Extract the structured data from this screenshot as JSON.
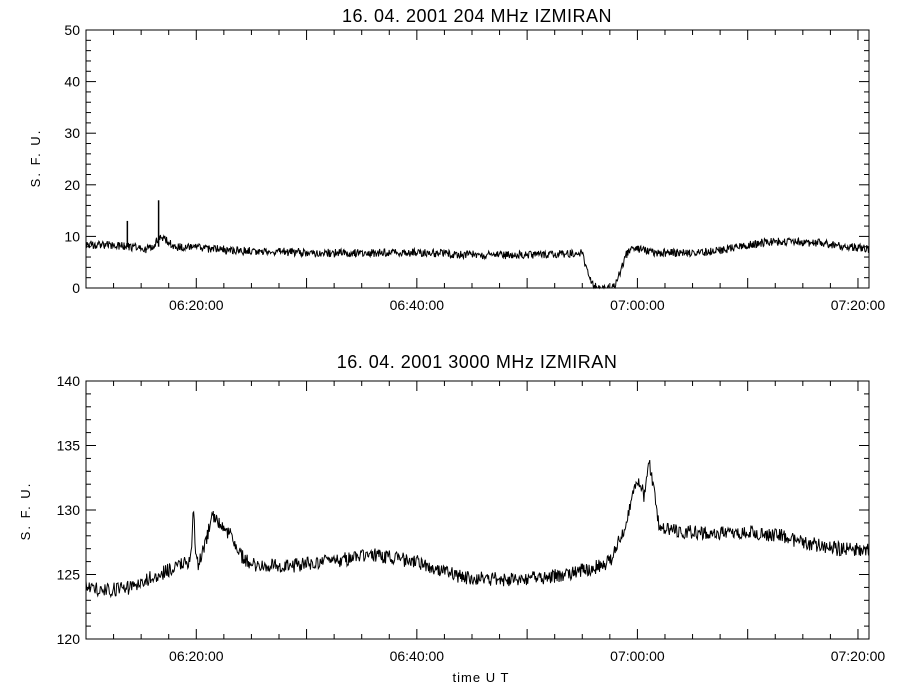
{
  "chart_data": [
    {
      "type": "line",
      "title": "16.  04.  2001    204 MHz    IZMIRAN",
      "ylabel": "S. F. U.",
      "xlabel": "",
      "xlim": [
        "06:10:00",
        "07:21:00"
      ],
      "ylim": [
        0,
        50
      ],
      "yticks": [
        "0",
        "10",
        "20",
        "30",
        "40",
        "50"
      ],
      "xticks": [
        "06:20:00",
        "06:40:00",
        "07:00:00",
        "07:20:00"
      ],
      "grid": false,
      "series": [
        {
          "x": [
            "06:10:00",
            "06:12:00",
            "06:14:00",
            "06:15:30",
            "06:16:00",
            "06:16:45",
            "06:18:00",
            "06:20:00",
            "06:24:00",
            "06:28:00",
            "06:32:00",
            "06:36:00",
            "06:40:00",
            "06:44:00",
            "06:48:00",
            "06:52:00",
            "06:55:00",
            "06:55:30",
            "06:56:00",
            "06:56:30",
            "06:57:00",
            "06:57:30",
            "06:58:00",
            "06:58:30",
            "06:59:00",
            "06:59:30",
            "07:00:00",
            "07:02:00",
            "07:06:00",
            "07:08:00",
            "07:10:00",
            "07:12:00",
            "07:16:00",
            "07:21:00"
          ],
          "values": [
            8.5,
            8.3,
            8,
            7.5,
            8,
            10,
            8,
            7.8,
            7.2,
            7,
            6.8,
            6.8,
            6.9,
            6.5,
            6.4,
            6.5,
            6.7,
            3,
            0.5,
            0,
            0,
            0,
            0.5,
            3.5,
            6.5,
            7.5,
            7.5,
            6.8,
            6.9,
            7.5,
            8.3,
            9,
            8.8,
            7.5
          ]
        }
      ],
      "spikes": [
        {
          "x": "06:13:45",
          "value": 13
        },
        {
          "x": "06:16:35",
          "value": 17
        }
      ]
    },
    {
      "type": "line",
      "title": "16.  04.  2001    3000 MHz    IZMIRAN",
      "ylabel": "S. F. U.",
      "xlabel": "time   U T",
      "xlim": [
        "06:10:00",
        "07:21:00"
      ],
      "ylim": [
        120,
        140
      ],
      "yticks": [
        "120",
        "125",
        "130",
        "135",
        "140"
      ],
      "xticks": [
        "06:20:00",
        "06:40:00",
        "07:00:00",
        "07:20:00"
      ],
      "grid": false,
      "series": [
        {
          "x": [
            "06:10:00",
            "06:12:00",
            "06:14:00",
            "06:16:00",
            "06:18:00",
            "06:19:30",
            "06:19:45",
            "06:20:00",
            "06:20:15",
            "06:21:30",
            "06:22:00",
            "06:23:00",
            "06:24:00",
            "06:25:00",
            "06:28:00",
            "06:32:00",
            "06:36:00",
            "06:40:00",
            "06:44:00",
            "06:48:00",
            "06:52:00",
            "06:56:00",
            "06:57:30",
            "06:58:00",
            "06:59:00",
            "07:00:00",
            "07:00:40",
            "07:01:00",
            "07:01:30",
            "07:02:00",
            "07:03:00",
            "07:06:00",
            "07:10:00",
            "07:13:00",
            "07:15:00",
            "07:18:00",
            "07:21:00"
          ],
          "values": [
            124,
            123.8,
            124,
            124.8,
            125.5,
            126,
            130,
            126,
            125.8,
            129.5,
            129,
            128.2,
            126.5,
            125.8,
            125.6,
            126,
            126.5,
            126,
            124.8,
            124.6,
            124.8,
            125.5,
            126,
            127,
            129,
            132.5,
            131,
            134,
            131.5,
            128.6,
            128.4,
            128.2,
            128.3,
            128,
            127.5,
            127,
            126.9
          ]
        }
      ]
    }
  ]
}
